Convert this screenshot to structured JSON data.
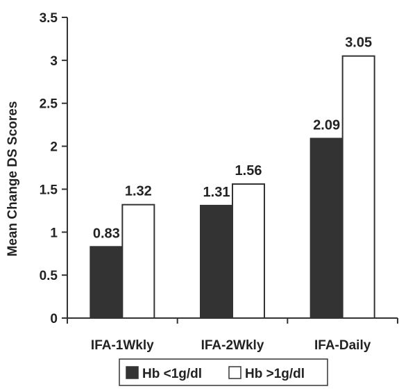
{
  "chart_data": {
    "type": "bar",
    "title": "",
    "xlabel": "",
    "ylabel": "Mean Change DS Scores",
    "ylim": [
      0,
      3.5
    ],
    "yticks": [
      "0",
      "0.5",
      "1",
      "1.5",
      "2",
      "2.5",
      "3",
      "3.5"
    ],
    "ytick_values": [
      0,
      0.5,
      1,
      1.5,
      2,
      2.5,
      3,
      3.5
    ],
    "categories": [
      "IFA-1Wkly",
      "IFA-2Wkly",
      "IFA-Daily"
    ],
    "series": [
      {
        "name": "Hb <1g/dl",
        "color": "#333333",
        "values": [
          0.83,
          1.31,
          2.09
        ],
        "labels": [
          "0.83",
          "1.31",
          "2.09"
        ]
      },
      {
        "name": "Hb >1g/dl",
        "color": "#ffffff",
        "values": [
          1.32,
          1.56,
          3.05
        ],
        "labels": [
          "1.32",
          "1.56",
          "3.05"
        ]
      }
    ],
    "grid": false,
    "legend_position": "bottom"
  }
}
